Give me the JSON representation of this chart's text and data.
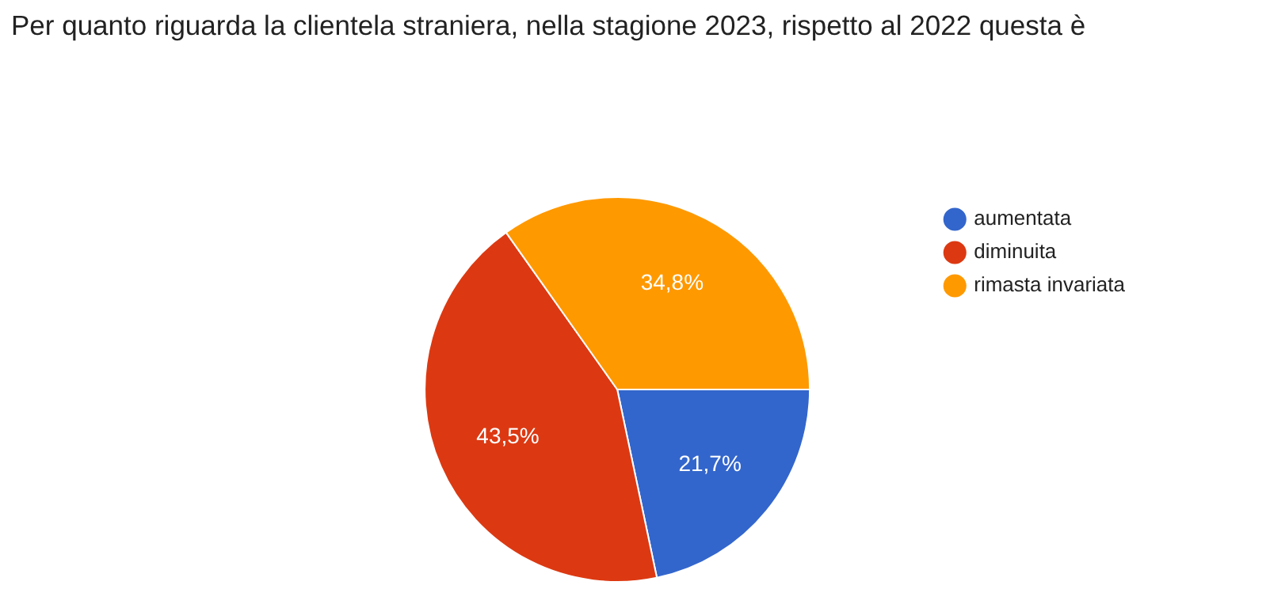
{
  "chart_data": {
    "type": "pie",
    "title": "Per quanto riguarda la clientela straniera, nella stagione 2023, rispetto al 2022 questa è",
    "categories": [
      "aumentata",
      "diminuita",
      "rimasta invariata"
    ],
    "values": [
      21.7,
      43.5,
      34.8
    ],
    "colors": [
      "#3366cc",
      "#dc3912",
      "#ff9900"
    ],
    "value_labels": [
      "21,7%",
      "43,5%",
      "34,8%"
    ],
    "legend": "top right"
  }
}
